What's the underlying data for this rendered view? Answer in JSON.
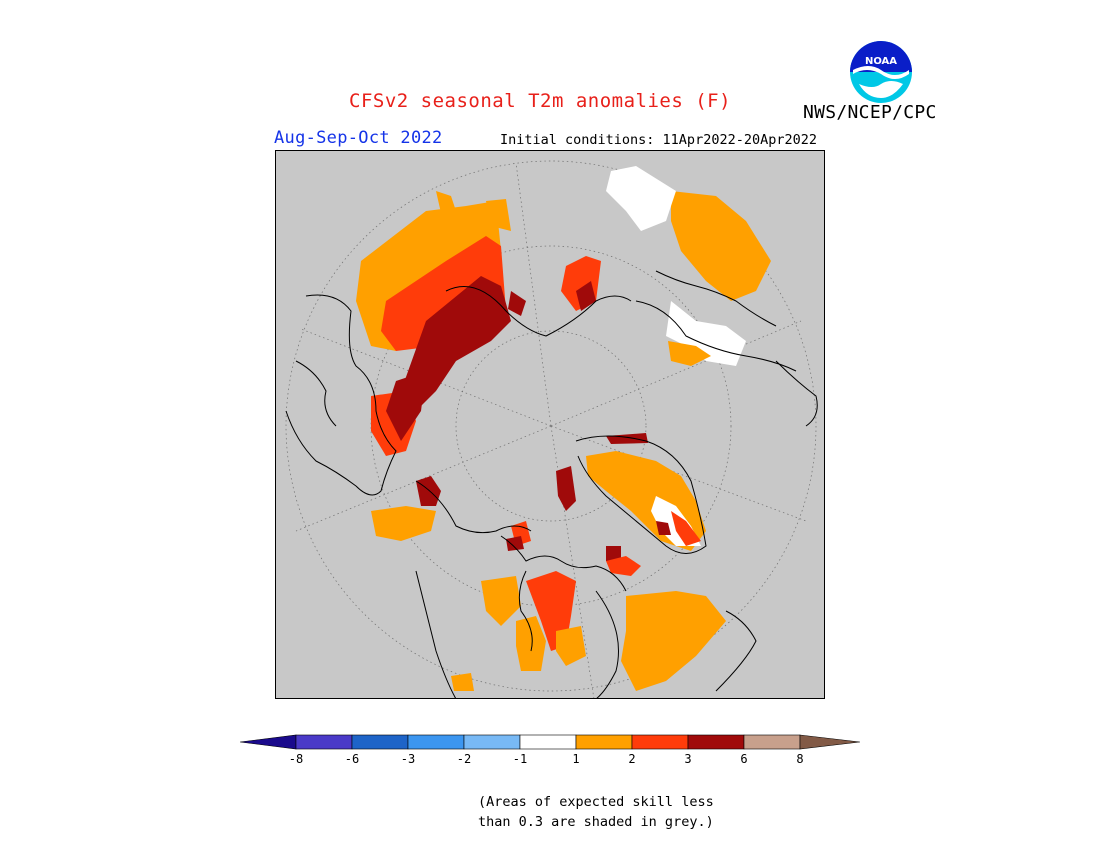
{
  "header": {
    "title": "CFSv2 seasonal T2m anomalies (F)",
    "season": "Aug-Sep-Oct 2022",
    "initial_conditions": "Initial conditions: 11Apr2022-20Apr2022",
    "agency": "NWS/NCEP/CPC",
    "logo_text": "NOAA"
  },
  "colors": {
    "skill_masked": "#c8c8c8",
    "title": "#e8201a",
    "season": "#1433e8",
    "coastline": "#000000",
    "gridline": "#6e6e6e"
  },
  "legend": {
    "ticks": [
      "-8",
      "-6",
      "-3",
      "-2",
      "-1",
      "1",
      "2",
      "3",
      "6",
      "8"
    ],
    "bins": [
      {
        "range": "< -8",
        "color": "#1a0a8c"
      },
      {
        "range": "-8 to -6",
        "color": "#4a3ac8"
      },
      {
        "range": "-6 to -3",
        "color": "#1e64c8"
      },
      {
        "range": "-3 to -2",
        "color": "#3c96f0"
      },
      {
        "range": "-2 to -1",
        "color": "#78b9f5"
      },
      {
        "range": "-1 to 1",
        "color": "#ffffff"
      },
      {
        "range": "1 to 2",
        "color": "#ffa000"
      },
      {
        "range": "2 to 3",
        "color": "#ff3c0a"
      },
      {
        "range": "3 to 6",
        "color": "#a00a0a"
      },
      {
        "range": "6 to 8",
        "color": "#c8a08c"
      },
      {
        "range": "> 8",
        "color": "#825a46"
      }
    ],
    "note_line1": "(Areas of expected skill less",
    "note_line2": "than 0.3 are shaded in grey.)"
  },
  "map": {
    "projection": "north-polar-stereographic",
    "regions": [
      {
        "name": "eastern-siberia",
        "class": "3 to 6"
      },
      {
        "name": "central-siberia",
        "class": "2 to 3"
      },
      {
        "name": "northeast-asia",
        "class": "1 to 2"
      },
      {
        "name": "northern-europe",
        "class": "1 to 2"
      },
      {
        "name": "greenland",
        "class": "1 to 2"
      },
      {
        "name": "western-north-america",
        "class": "2 to 3"
      },
      {
        "name": "eastern-canada",
        "class": "1 to 2"
      }
    ]
  }
}
